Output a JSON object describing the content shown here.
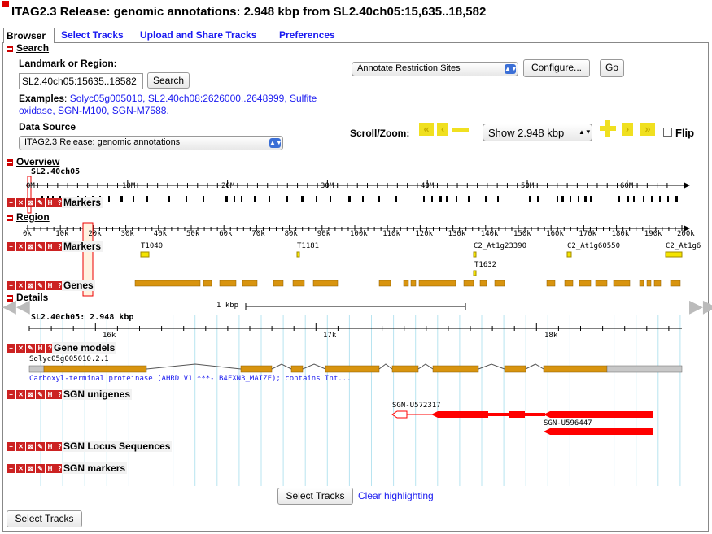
{
  "page_title": "ITAG2.3 Release: genomic annotations: 2.948 kbp from SL2.40ch05:15,635..18,582",
  "tabs": [
    "Browser",
    "Select Tracks",
    "Upload and Share Tracks",
    "Preferences"
  ],
  "search": {
    "heading": "Search",
    "landmark_label": "Landmark or Region:",
    "landmark_value": "SL2.40ch05:15635..18582",
    "search_button": "Search",
    "examples_label": "Examples",
    "examples": [
      "Solyc05g005010",
      "SL2.40ch08:2626000..2648999",
      "Sulfite oxidase",
      "SGN-M100",
      "SGN-M7588."
    ],
    "data_source_label": "Data Source",
    "data_source_value": "ITAG2.3 Release: genomic annotations",
    "plugin_select": "Annotate Restriction Sites",
    "configure_button": "Configure...",
    "go_button": "Go",
    "scroll_zoom_label": "Scroll/Zoom:",
    "zoom_select": "Show 2.948 kbp",
    "flip_label": "Flip"
  },
  "overview": {
    "heading": "Overview",
    "chrom": "SL2.40ch05",
    "ticks": [
      "0M",
      "10M",
      "20M",
      "30M",
      "40M",
      "50M",
      "60M"
    ],
    "markers_label": "Markers"
  },
  "region": {
    "heading": "Region",
    "ticks": [
      "0k",
      "10k",
      "20k",
      "30k",
      "40k",
      "50k",
      "60k",
      "70k",
      "80k",
      "90k",
      "100k",
      "110k",
      "120k",
      "130k",
      "140k",
      "150k",
      "160k",
      "170k",
      "180k",
      "190k",
      "200k"
    ],
    "markers_label": "Markers",
    "marker_names": [
      "T1040",
      "T1181",
      "C2_At1g23390",
      "C2_At1g60550",
      "C2_At1g6",
      "T1632"
    ],
    "genes_label": "Genes"
  },
  "details": {
    "heading": "Details",
    "scale_label": "1 kbp",
    "position_label": "SL2.40ch05: 2.948 kbp",
    "ticks": [
      "16k",
      "17k",
      "18k"
    ],
    "gene_models_label": "Gene models",
    "gene_id": "Solyc05g005010.2.1",
    "gene_desc": "Carboxyl-terminal proteinase (AHRD V1 ***- B4FXN3_MAIZE); contains Int...",
    "unigenes_label": "SGN unigenes",
    "unigene_1": "SGN-U572317",
    "unigene_2": "SGN-U596447",
    "locus_label": "SGN Locus Sequences",
    "sgn_markers_label": "SGN markers"
  },
  "footer": {
    "select_tracks_button": "Select Tracks",
    "clear_highlighting": "Clear highlighting",
    "bottom_select_tracks": "Select Tracks"
  },
  "colors": {
    "gene": "#d8940f",
    "unigene": "#ff0000",
    "link": "#1a1af0",
    "marker": "#f4e400",
    "grid": "#b8e4f0"
  }
}
